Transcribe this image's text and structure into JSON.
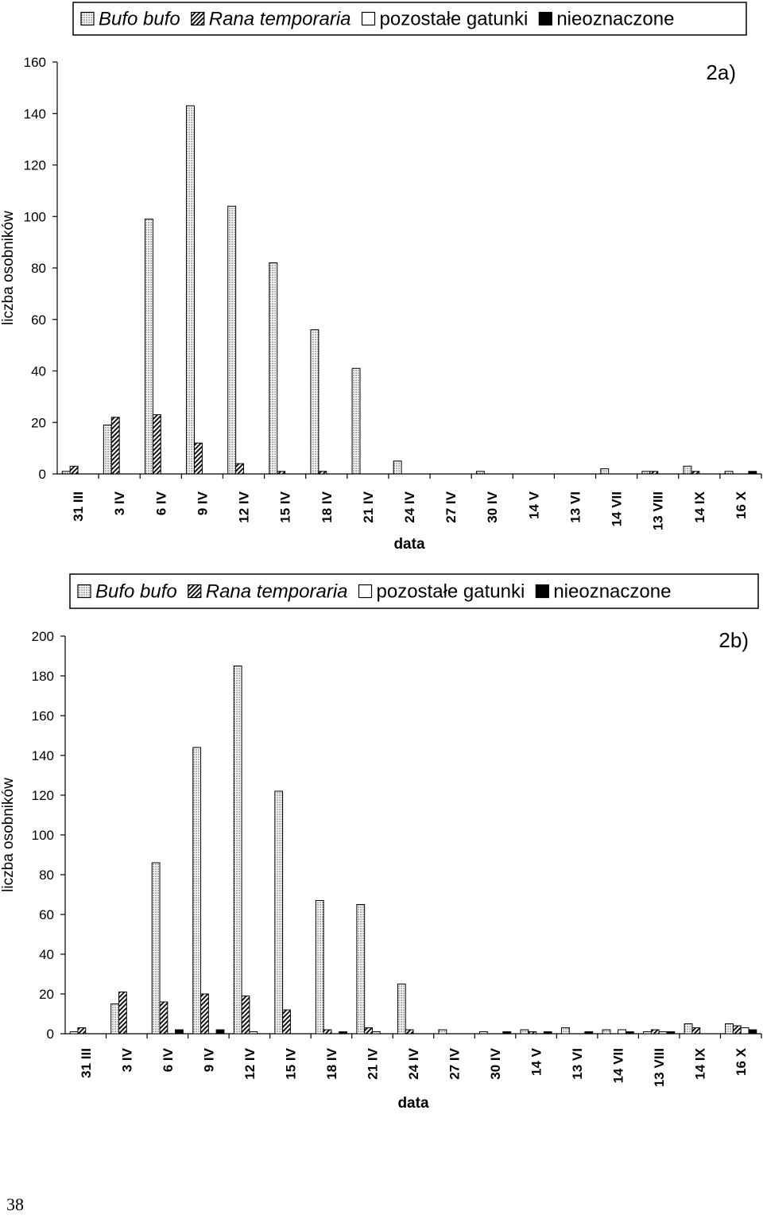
{
  "page_number": "38",
  "patterns": {
    "Bufo bufo": "dots",
    "Rana temporaria": "hatch",
    "pozostałe gatunki": "blank",
    "nieoznaczone": "solid"
  },
  "chart_data": [
    {
      "type": "bar",
      "panel_label": "2a)",
      "xlabel": "data",
      "ylabel": "liczba osobników",
      "ylim": [
        0,
        160
      ],
      "yticks": [
        0,
        20,
        40,
        60,
        80,
        100,
        120,
        140,
        160
      ],
      "legend": "top",
      "categories": [
        "31 III",
        "3 IV",
        "6 IV",
        "9 IV",
        "12 IV",
        "15 IV",
        "18 IV",
        "21 IV",
        "24 IV",
        "27 IV",
        "30 IV",
        "14 V",
        "13 VI",
        "14 VII",
        "13 VIII",
        "14 IX",
        "16 X"
      ],
      "series": [
        {
          "name": "Bufo bufo",
          "values": [
            1,
            19,
            99,
            143,
            104,
            82,
            56,
            41,
            5,
            0,
            1,
            0,
            0,
            2,
            1,
            3,
            1
          ]
        },
        {
          "name": "Rana temporaria",
          "values": [
            3,
            22,
            23,
            12,
            4,
            1,
            1,
            0,
            0,
            0,
            0,
            0,
            0,
            0,
            1,
            1,
            0
          ]
        },
        {
          "name": "pozostałe gatunki",
          "values": [
            0,
            0,
            0,
            0,
            0,
            0,
            0,
            0,
            0,
            0,
            0,
            0,
            0,
            0,
            0,
            0,
            0
          ]
        },
        {
          "name": "nieoznaczone",
          "values": [
            0,
            0,
            0,
            0,
            0,
            0,
            0,
            0,
            0,
            0,
            0,
            0,
            0,
            0,
            0,
            0,
            1
          ]
        }
      ]
    },
    {
      "type": "bar",
      "panel_label": "2b)",
      "xlabel": "data",
      "ylabel": "liczba osobników",
      "ylim": [
        0,
        200
      ],
      "yticks": [
        0,
        20,
        40,
        60,
        80,
        100,
        120,
        140,
        160,
        180,
        200
      ],
      "legend": "top",
      "categories": [
        "31 III",
        "3 IV",
        "6 IV",
        "9 IV",
        "12 IV",
        "15 IV",
        "18 IV",
        "21 IV",
        "24 IV",
        "27 IV",
        "30 IV",
        "14 V",
        "13 VI",
        "14 VII",
        "13 VIII",
        "14 IX",
        "16 X"
      ],
      "series": [
        {
          "name": "Bufo bufo",
          "values": [
            1,
            15,
            86,
            144,
            185,
            122,
            67,
            65,
            25,
            2,
            1,
            2,
            3,
            2,
            1,
            5,
            5
          ]
        },
        {
          "name": "Rana temporaria",
          "values": [
            3,
            21,
            16,
            20,
            19,
            12,
            2,
            3,
            2,
            0,
            0,
            1,
            0,
            0,
            2,
            3,
            4
          ]
        },
        {
          "name": "pozostałe gatunki",
          "values": [
            0,
            0,
            0,
            0,
            1,
            0,
            0,
            1,
            0,
            0,
            0,
            0,
            0,
            2,
            1,
            0,
            3
          ]
        },
        {
          "name": "nieoznaczone",
          "values": [
            0,
            0,
            2,
            2,
            0,
            0,
            1,
            0,
            0,
            0,
            1,
            1,
            1,
            1,
            1,
            0,
            2
          ]
        }
      ]
    }
  ]
}
